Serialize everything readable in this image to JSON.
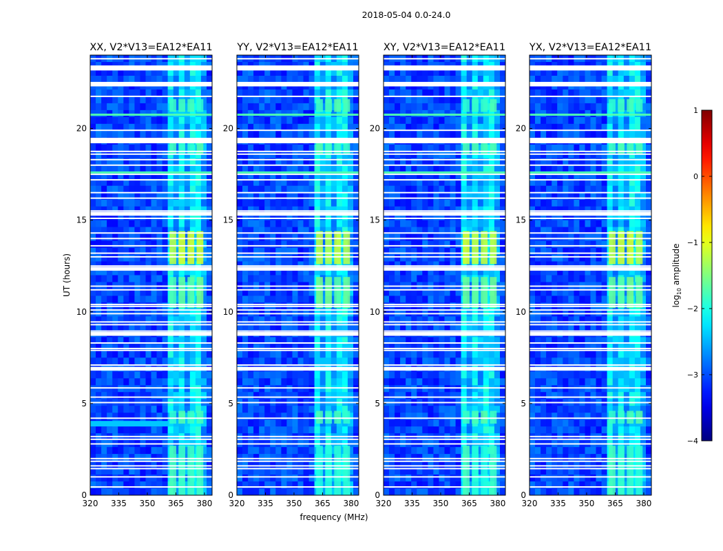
{
  "chart_data": {
    "type": "heatmap",
    "suptitle": "2018-05-04 0.0-24.0",
    "xlabel": "frequency (MHz)",
    "ylabel": "UT (hours)",
    "xlim": [
      320,
      384
    ],
    "ylim": [
      0,
      24
    ],
    "xticks": [
      320,
      335,
      350,
      365,
      380
    ],
    "yticks": [
      0,
      5,
      10,
      15,
      20
    ],
    "panels": [
      {
        "title": "XX, V2*V13=EA12*EA11",
        "polarization": "XX"
      },
      {
        "title": "YY, V2*V13=EA12*EA11",
        "polarization": "YY"
      },
      {
        "title": "XY, V2*V13=EA12*EA11",
        "polarization": "XY"
      },
      {
        "title": "YX, V2*V13=EA12*EA11",
        "polarization": "YX"
      }
    ],
    "colorbar": {
      "label": "log10 amplitude",
      "label_base": "log",
      "label_sub": "10",
      "label_rest": " amplitude",
      "range": [
        -4,
        1
      ],
      "ticks": [
        {
          "value": 1,
          "label": "1"
        },
        {
          "value": 0,
          "label": "0"
        },
        {
          "value": -1,
          "label": "−1"
        },
        {
          "value": -2,
          "label": "−2"
        },
        {
          "value": -3,
          "label": "−3"
        },
        {
          "value": -4,
          "label": "−4"
        }
      ],
      "colormap": "jet"
    },
    "active_band_mhz": [
      361,
      380
    ],
    "flagged_ut_hours": [
      0.45,
      1.0,
      1.45,
      1.6,
      1.85,
      2.0,
      2.8,
      3.05,
      3.2,
      4.2,
      5.05,
      5.35,
      5.85,
      6.85,
      6.95,
      7.1,
      7.9,
      8.0,
      8.3,
      8.75,
      8.95,
      9.3,
      9.45,
      9.9,
      10.1,
      10.3,
      10.4,
      11.2,
      11.4,
      12.4,
      12.5,
      13.0,
      13.2,
      13.6,
      14.0,
      14.3,
      15.1,
      15.3,
      15.5,
      16.2,
      16.5,
      17.2,
      17.5,
      18.0,
      18.3,
      18.6,
      18.75,
      19.3,
      19.45,
      19.9,
      21.75,
      22.35,
      22.5,
      23.2,
      23.4,
      23.8
    ]
  }
}
